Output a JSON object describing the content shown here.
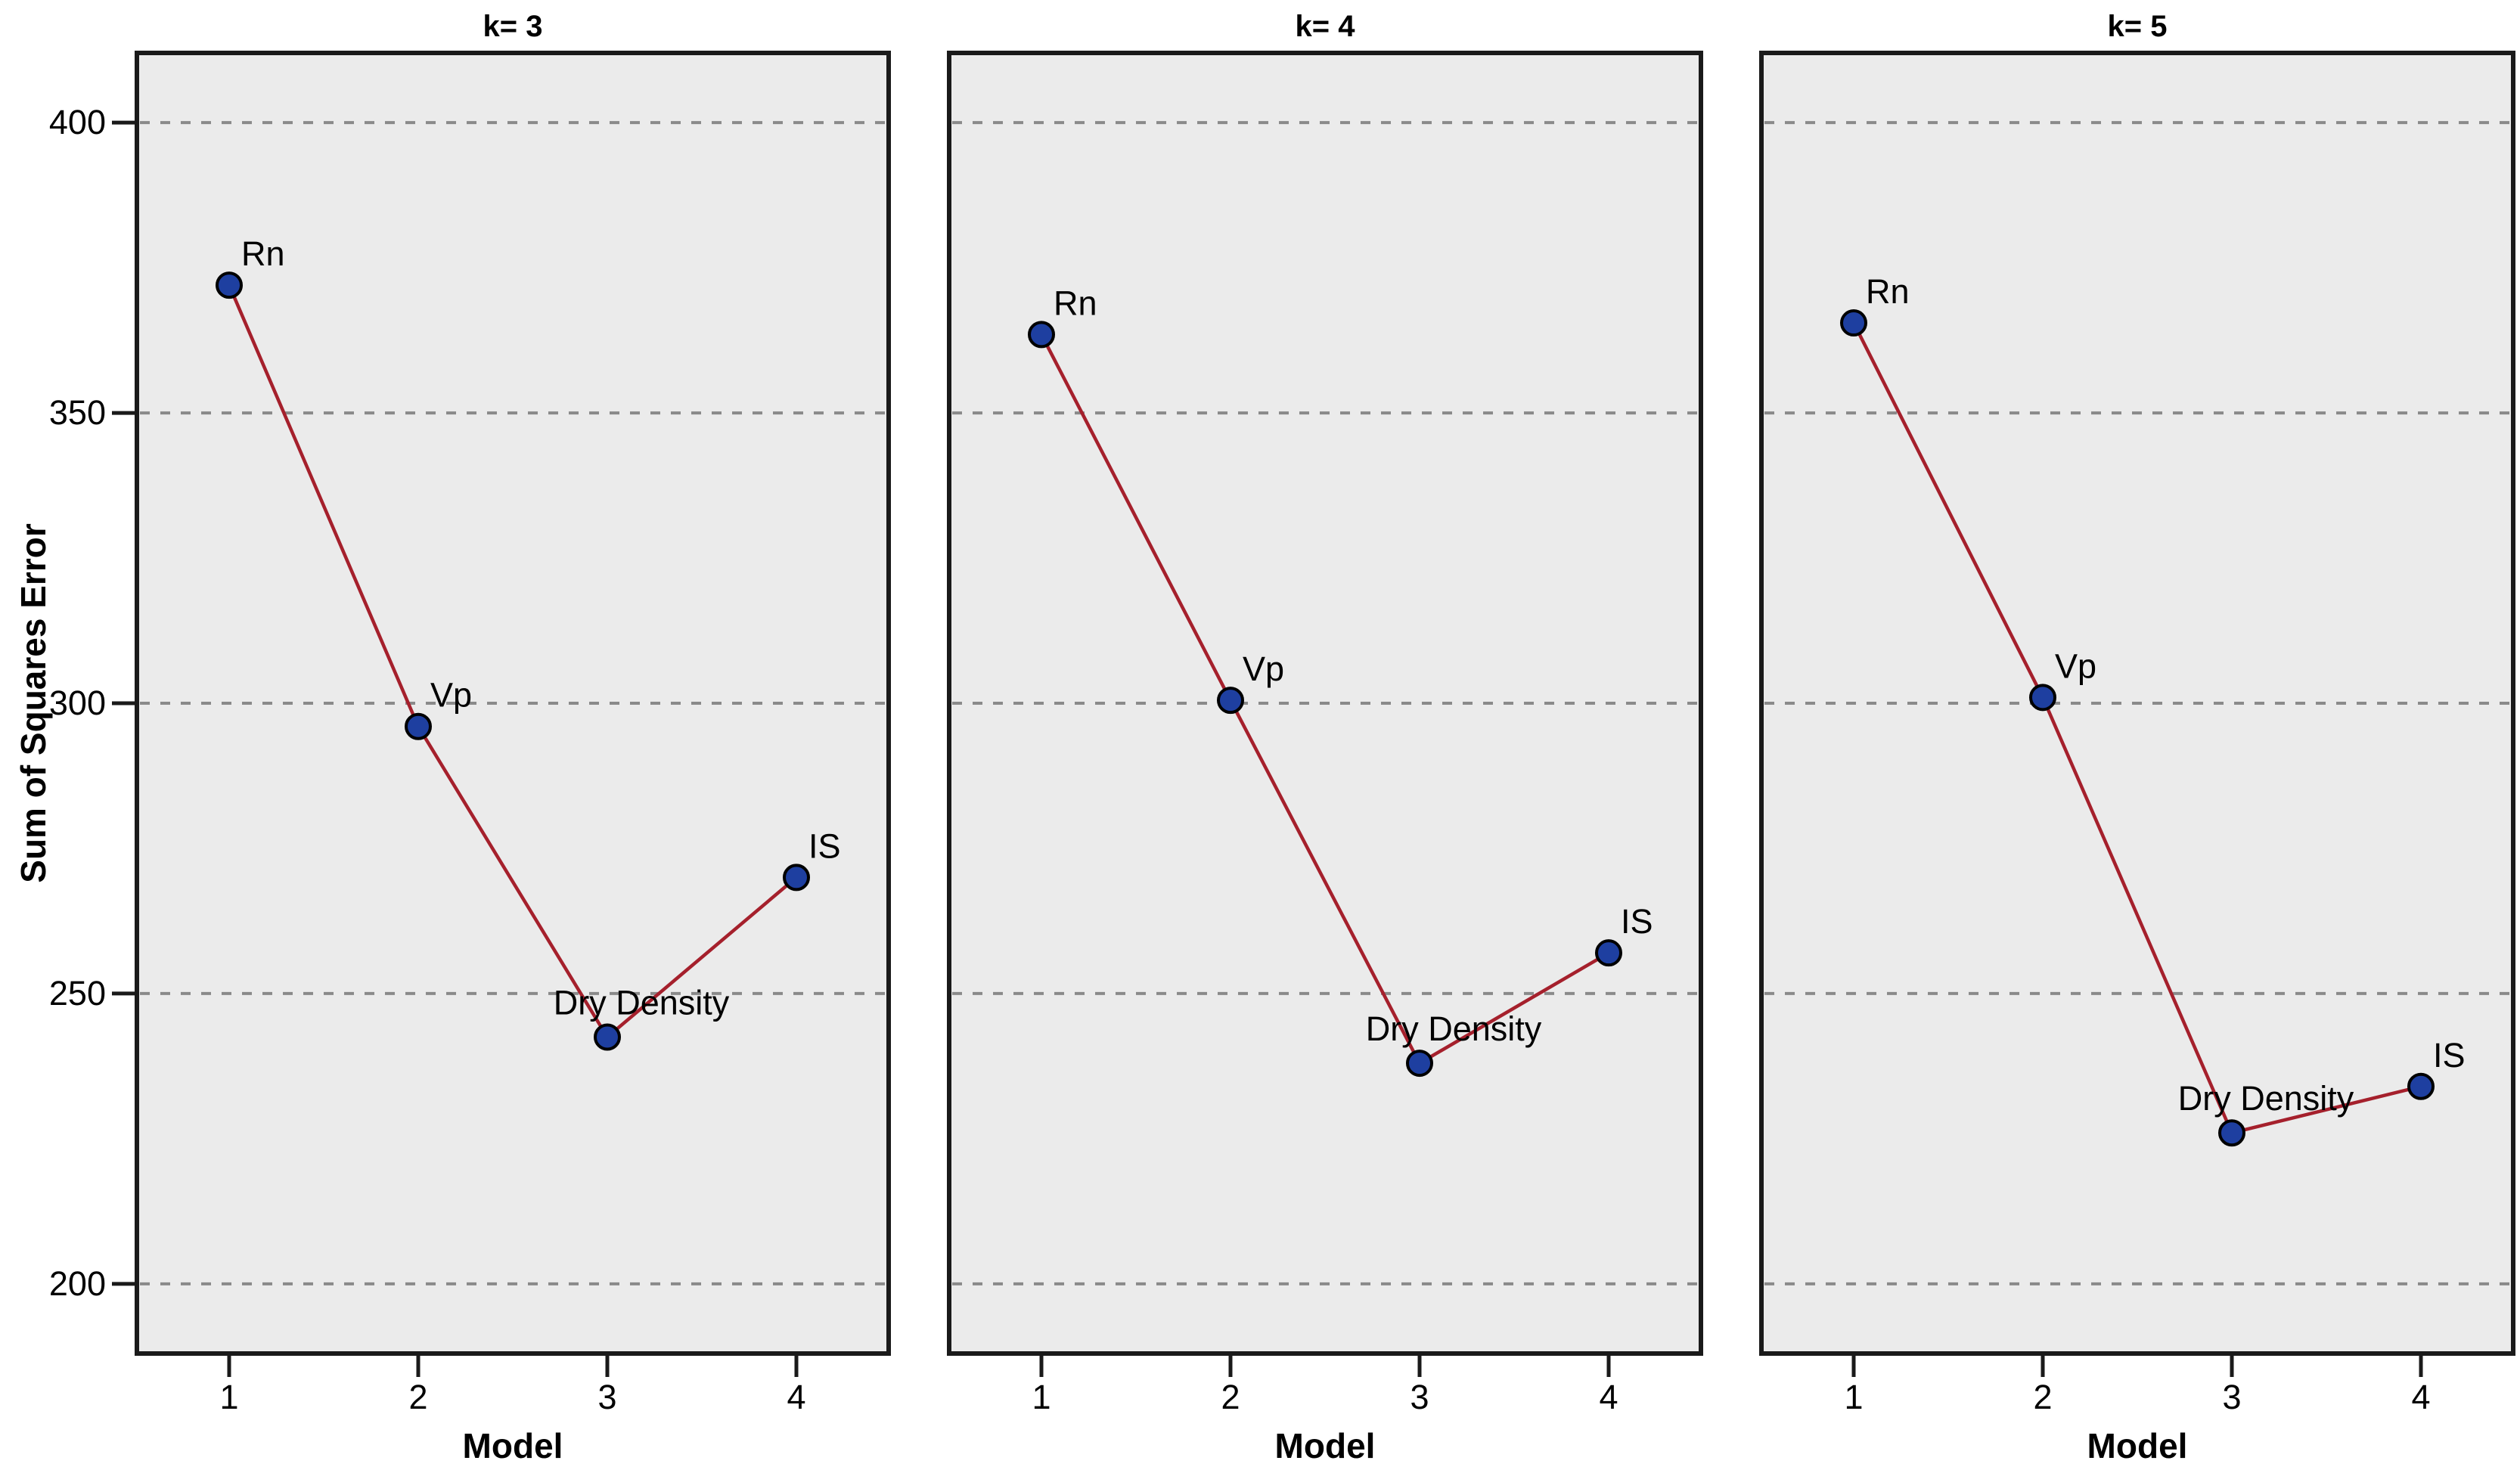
{
  "figure": {
    "y_axis_title": "Sum of Squares Error",
    "x_axis_title": "Model",
    "y_tick_labels": [
      "400",
      "350",
      "300",
      "250",
      "200"
    ],
    "x_tick_labels": [
      "1",
      "2",
      "3",
      "4"
    ]
  },
  "style": {
    "line_color": "#A5202C",
    "marker_fill": "#1E3FA0",
    "marker_edge": "#000000",
    "plot_bg": "#EBEBEB",
    "grid_color": "#8A8A8A",
    "frame_color": "#1A1A1A",
    "tick_color": "#1A1A1A",
    "text_color": "#000000",
    "page_bg": "#FFFFFF"
  },
  "chart_data": [
    {
      "type": "line",
      "title": "k= 3",
      "x": [
        1,
        2,
        3,
        4
      ],
      "categories": [
        "Rn",
        "Vp",
        "Dry Density",
        "IS"
      ],
      "values": [
        372,
        296,
        242.5,
        270
      ],
      "xlabel": "Model",
      "ylabel": "Sum of Squares Error",
      "ylim": [
        188,
        412
      ],
      "yticks": [
        400,
        350,
        300,
        250,
        200
      ],
      "grid": "horizontal-dashed",
      "legend": "none"
    },
    {
      "type": "line",
      "title": "k= 4",
      "x": [
        1,
        2,
        3,
        4
      ],
      "categories": [
        "Rn",
        "Vp",
        "Dry Density",
        "IS"
      ],
      "values": [
        363.5,
        300.5,
        238,
        257
      ],
      "xlabel": "Model",
      "ylabel": "Sum of Squares Error",
      "ylim": [
        188,
        412
      ],
      "yticks": [
        400,
        350,
        300,
        250,
        200
      ],
      "grid": "horizontal-dashed",
      "legend": "none"
    },
    {
      "type": "line",
      "title": "k= 5",
      "x": [
        1,
        2,
        3,
        4
      ],
      "categories": [
        "Rn",
        "Vp",
        "Dry Density",
        "IS"
      ],
      "values": [
        365.5,
        301,
        226,
        234
      ],
      "xlabel": "Model",
      "ylabel": "Sum of Squares Error",
      "ylim": [
        188,
        412
      ],
      "yticks": [
        400,
        350,
        300,
        250,
        200
      ],
      "grid": "horizontal-dashed",
      "legend": "none"
    }
  ]
}
